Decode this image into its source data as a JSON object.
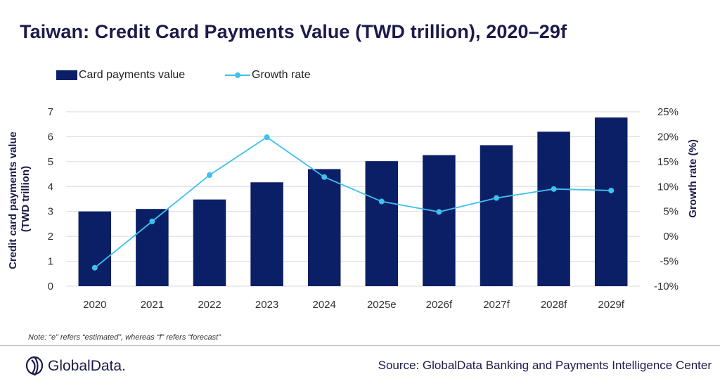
{
  "title": "Taiwan: Credit Card Payments Value (TWD trillion), 2020–29f",
  "legend": {
    "bar_label": "Card payments value",
    "line_label": "Growth rate"
  },
  "note": "Note: “e” refers “estimated”, whereas “f” refers “forecast”",
  "source": "Source: GlobalData Banking and Payments Intelligence Center",
  "logo_text": "GlobalData.",
  "colors": {
    "bar": "#0b1f66",
    "line": "#3fc0ee",
    "title": "#1b1b4b",
    "grid": "#d9d9d9"
  },
  "chart_data": {
    "type": "bar",
    "categories": [
      "2020",
      "2021",
      "2022",
      "2023",
      "2024",
      "2025e",
      "2026f",
      "2027f",
      "2028f",
      "2029f"
    ],
    "series": [
      {
        "name": "Card payments value",
        "type": "bar",
        "axis": "left",
        "values": [
          3.0,
          3.1,
          3.48,
          4.17,
          4.7,
          5.02,
          5.26,
          5.66,
          6.2,
          6.77
        ]
      },
      {
        "name": "Growth rate",
        "type": "line",
        "axis": "right",
        "values": [
          -6.3,
          3.0,
          12.3,
          19.9,
          11.9,
          7.0,
          4.9,
          7.7,
          9.5,
          9.2
        ]
      }
    ],
    "ylabel": "Credit card payments value (TWD trillion)",
    "y2label": "Growth rate (%)",
    "ylim": [
      0,
      7
    ],
    "yticks": [
      "0",
      "1",
      "2",
      "3",
      "4",
      "5",
      "6",
      "7"
    ],
    "y2lim": [
      -10,
      25
    ],
    "y2ticks": [
      "-10%",
      "-5%",
      "0%",
      "5%",
      "10%",
      "15%",
      "20%",
      "25%"
    ],
    "grid": "horizontal",
    "legend_position": "top-left"
  }
}
